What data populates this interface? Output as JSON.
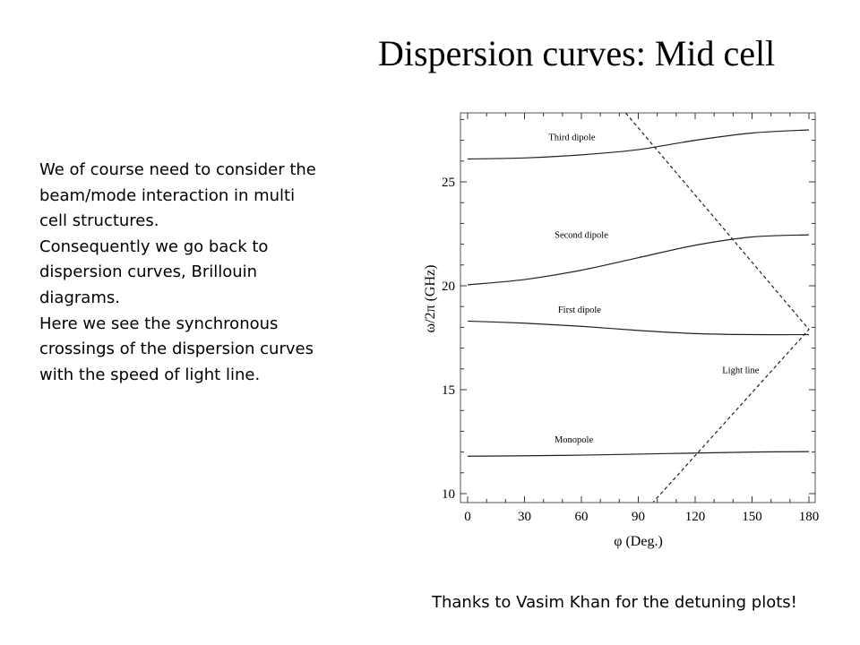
{
  "slide": {
    "title": "Dispersion curves: Mid cell",
    "body_lines": [
      "We of course need to consider the",
      "beam/mode interaction in multi",
      "cell structures.",
      "Consequently we go back to",
      "dispersion curves, Brillouin",
      "diagrams.",
      "Here we see the synchronous",
      "crossings of the dispersion curves",
      "with the speed of light line."
    ],
    "footer": "Thanks to Vasim Khan for the detuning plots!"
  },
  "chart_data": {
    "type": "line",
    "xlabel": "φ (Deg.)",
    "ylabel": "ω/2π (GHz)",
    "xlim": [
      0,
      180
    ],
    "ylim": [
      9.6,
      28.8
    ],
    "x_ticks": [
      0,
      30,
      60,
      90,
      120,
      150,
      180
    ],
    "y_ticks": [
      10,
      15,
      20,
      25
    ],
    "grid": false,
    "series": [
      {
        "name": "Third dipole",
        "style": "solid",
        "x": [
          0,
          30,
          60,
          90,
          120,
          150,
          180
        ],
        "y": [
          26.1,
          26.15,
          26.3,
          26.55,
          27.0,
          27.35,
          27.5
        ]
      },
      {
        "name": "Second dipole",
        "style": "solid",
        "x": [
          0,
          30,
          60,
          90,
          120,
          150,
          180
        ],
        "y": [
          20.05,
          20.3,
          20.75,
          21.35,
          21.95,
          22.35,
          22.45
        ]
      },
      {
        "name": "First dipole",
        "style": "solid",
        "x": [
          0,
          30,
          60,
          90,
          120,
          150,
          180
        ],
        "y": [
          18.3,
          18.2,
          18.05,
          17.85,
          17.7,
          17.65,
          17.65
        ]
      },
      {
        "name": "Monopole",
        "style": "solid",
        "x": [
          0,
          30,
          60,
          90,
          120,
          150,
          180
        ],
        "y": [
          11.8,
          11.82,
          11.85,
          11.9,
          11.95,
          12.0,
          12.02
        ]
      },
      {
        "name": "Light line",
        "style": "dashed",
        "x": [
          77,
          180,
          98
        ],
        "y": [
          29.0,
          17.9,
          9.6
        ]
      }
    ],
    "annotations": [
      {
        "text": "Third dipole",
        "x": 55,
        "y": 27.0
      },
      {
        "text": "Second dipole",
        "x": 60,
        "y": 22.3
      },
      {
        "text": "First dipole",
        "x": 59,
        "y": 18.7
      },
      {
        "text": "Monopole",
        "x": 56,
        "y": 12.45
      },
      {
        "text": "Light line",
        "x": 144,
        "y": 15.8
      }
    ]
  }
}
